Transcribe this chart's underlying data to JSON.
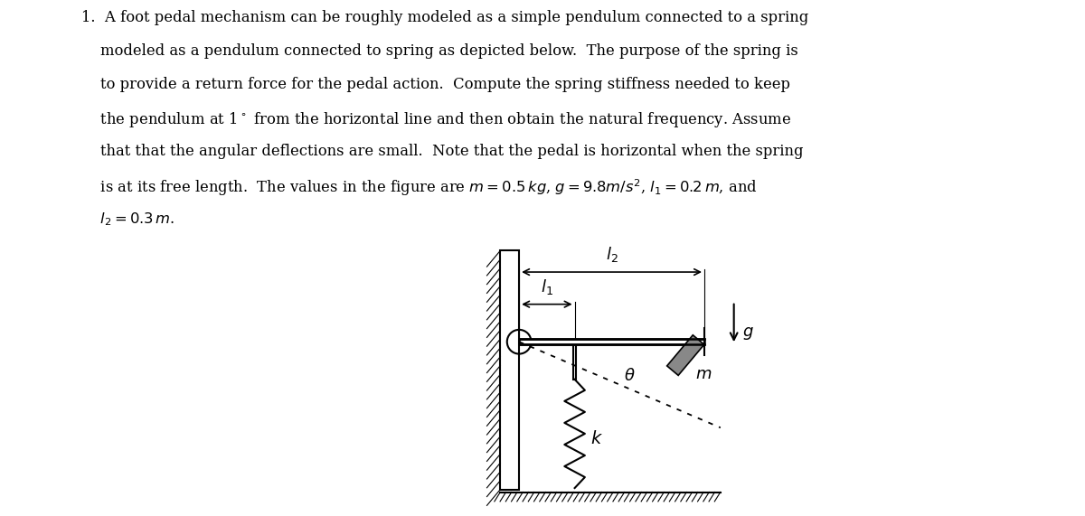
{
  "text_lines": [
    "1.  A foot pedal mechanism can be roughly modeled as a simple pendulum connected to a spring",
    "    modeled as a pendulum connected to spring as depicted below.  The purpose of the spring is",
    "    to provide a return force for the pedal action.  Compute the spring stiffness needed to keep",
    "    the pendulum at 1$^\\circ$ from the horizontal line and then obtain the natural frequency. Assume",
    "    that that the angular deflections are small.  Note that the pedal is horizontal when the spring",
    "    is at its free length.  The values in the figure are $m = 0.5\\,kg$, $g = 9.8m/s^2$, $l_1 = 0.2\\,m$, and",
    "    $l_2 = 0.3\\,m$."
  ],
  "text_color": "#000000",
  "line_color": "#000000",
  "mass_color": "#888888",
  "fontsize_text": 11.8,
  "fontsize_label": 13
}
